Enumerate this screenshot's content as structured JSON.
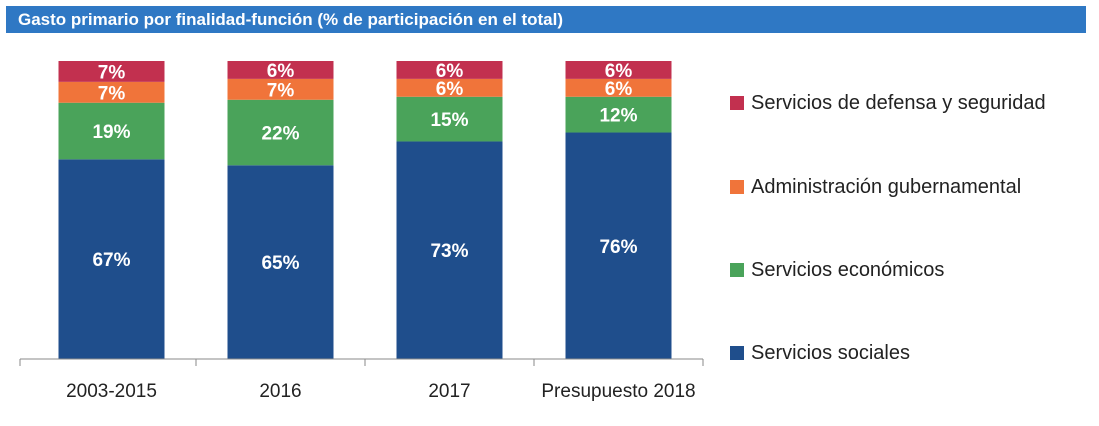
{
  "header": {
    "title": "Gasto primario por finalidad-función (% de participación en el total)",
    "background_color": "#2f78c4"
  },
  "chart_data": {
    "type": "bar",
    "stacked": true,
    "title": "Gasto primario por finalidad-función (% de participación en el total)",
    "xlabel": "",
    "ylabel": "",
    "ylim": [
      0,
      100
    ],
    "grid": false,
    "legend_position": "right",
    "categories": [
      "2003-2015",
      "2016",
      "2017",
      "Presupuesto 2018"
    ],
    "series": [
      {
        "name": "Servicios sociales",
        "color": "#1f4e8c",
        "values": [
          67,
          65,
          73,
          76
        ],
        "labels": [
          "67%",
          "65%",
          "73%",
          "76%"
        ]
      },
      {
        "name": "Servicios económicos",
        "color": "#4aa35a",
        "values": [
          19,
          22,
          15,
          12
        ],
        "labels": [
          "19%",
          "22%",
          "15%",
          "12%"
        ]
      },
      {
        "name": "Administración gubernamental",
        "color": "#f0743a",
        "values": [
          7,
          7,
          6,
          6
        ],
        "labels": [
          "7%",
          "7%",
          "6%",
          "6%"
        ]
      },
      {
        "name": "Servicios de defensa y seguridad",
        "color": "#c2304f",
        "values": [
          7,
          6,
          6,
          6
        ],
        "labels": [
          "7%",
          "6%",
          "6%",
          "6%"
        ]
      }
    ],
    "legend_order": [
      "Servicios de defensa y seguridad",
      "Administración gubernamental",
      "Servicios económicos",
      "Servicios sociales"
    ]
  }
}
